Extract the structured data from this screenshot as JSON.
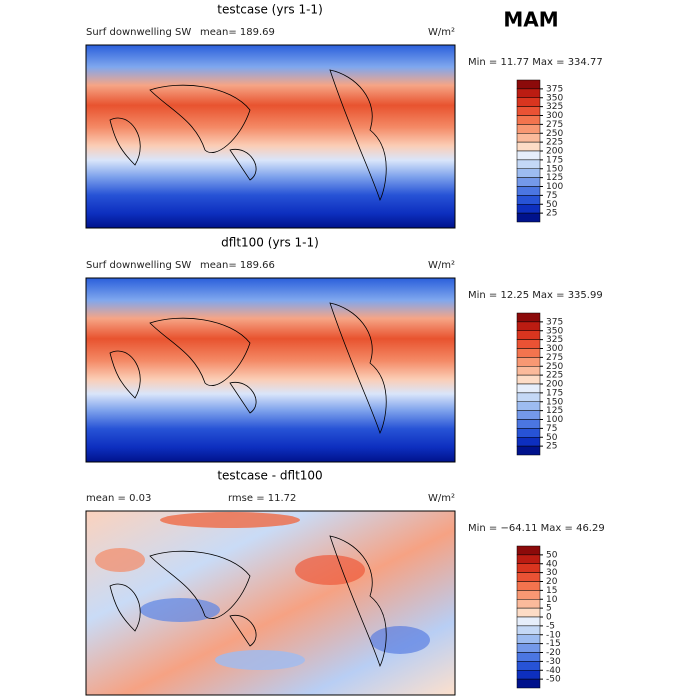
{
  "figure_title": "MAM",
  "panels": [
    {
      "title": "testcase (yrs 1-1)",
      "left_label": "Surf downwelling SW",
      "center_label": "mean= 189.69",
      "units": "W/m²",
      "stats": "Min =  11.77 Max = 334.77",
      "levels": [
        375,
        350,
        325,
        300,
        275,
        250,
        225,
        200,
        175,
        150,
        125,
        100,
        75,
        50,
        25
      ],
      "colors": [
        "#8c0a0a",
        "#bb1c12",
        "#d9351f",
        "#ea5234",
        "#f3744e",
        "#f89873",
        "#fbba9b",
        "#fddcc6",
        "#e6eefb",
        "#c4d8f6",
        "#9dbcf1",
        "#7499ea",
        "#4b76e2",
        "#2753d6",
        "#0d2fbf",
        "#00128c"
      ]
    },
    {
      "title": "dflt100 (yrs 1-1)",
      "left_label": "Surf downwelling SW",
      "center_label": "mean= 189.66",
      "units": "W/m²",
      "stats": "Min =  12.25 Max = 335.99",
      "levels": [
        375,
        350,
        325,
        300,
        275,
        250,
        225,
        200,
        175,
        150,
        125,
        100,
        75,
        50,
        25
      ],
      "colors": [
        "#8c0a0a",
        "#bb1c12",
        "#d9351f",
        "#ea5234",
        "#f3744e",
        "#f89873",
        "#fbba9b",
        "#fddcc6",
        "#e6eefb",
        "#c4d8f6",
        "#9dbcf1",
        "#7499ea",
        "#4b76e2",
        "#2753d6",
        "#0d2fbf",
        "#00128c"
      ]
    },
    {
      "title": "testcase - dflt100",
      "left_label": "mean =    0.03",
      "center_label": "rmse =  11.72",
      "units": "W/m²",
      "stats": "Min = −64.11 Max =  46.29",
      "levels": [
        50,
        40,
        30,
        20,
        15,
        10,
        5,
        0,
        -5,
        -10,
        -15,
        -20,
        -30,
        -40,
        -50
      ],
      "colors": [
        "#8c0a0a",
        "#bb1c12",
        "#d9351f",
        "#ea5234",
        "#f3744e",
        "#f89873",
        "#fbba9b",
        "#fddcc6",
        "#e6eefb",
        "#c4d8f6",
        "#9dbcf1",
        "#7499ea",
        "#4b76e2",
        "#2753d6",
        "#0d2fbf",
        "#00128c"
      ]
    }
  ]
}
